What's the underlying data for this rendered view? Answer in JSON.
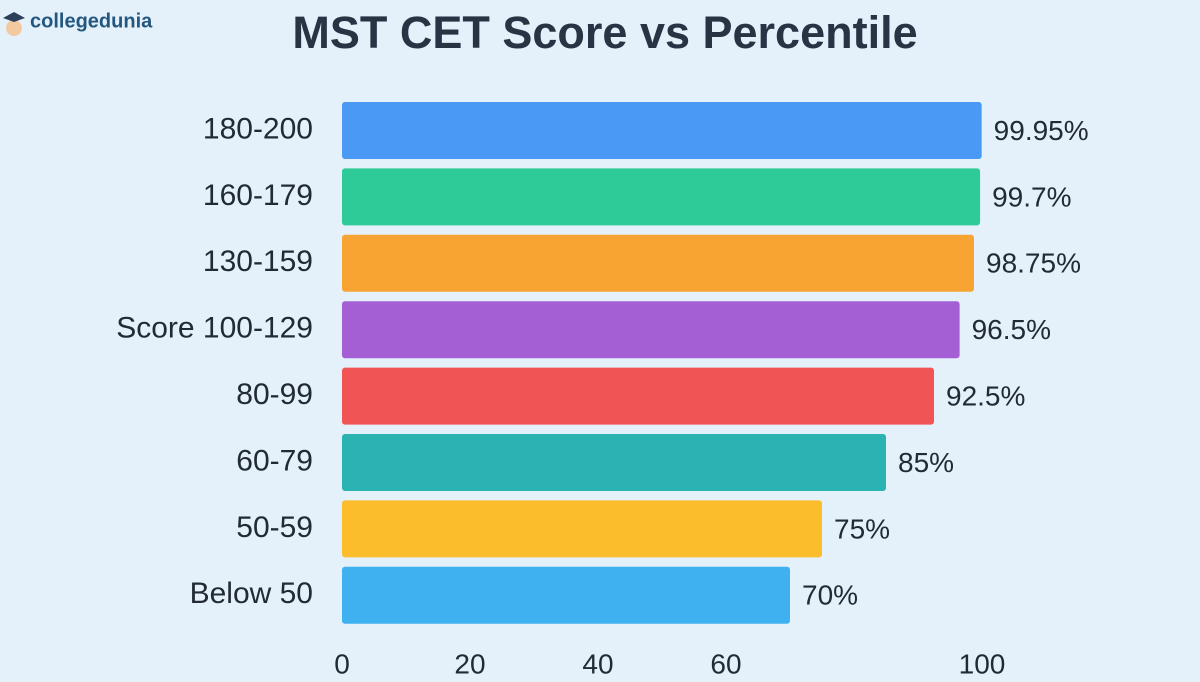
{
  "brand": "collegedunia",
  "chart_data": {
    "type": "bar",
    "orientation": "horizontal",
    "title": "MST CET Score vs Percentile",
    "categories": [
      "180-200",
      "160-179",
      "130-159",
      "Score 100-129",
      "80-99",
      "60-79",
      "50-59",
      "Below 50"
    ],
    "values": [
      99.95,
      99.7,
      98.75,
      96.5,
      92.5,
      85,
      75,
      70
    ],
    "value_labels": [
      "99.95%",
      "99.7%",
      "98.75%",
      "96.5%",
      "92.5%",
      "85%",
      "75%",
      "70%"
    ],
    "colors": [
      "#4a9af5",
      "#2ecb98",
      "#f7a433",
      "#a35fd3",
      "#f05454",
      "#2bb3b1",
      "#fbbd2c",
      "#3fb1f0"
    ],
    "xlim": [
      0,
      100
    ],
    "xticks": [
      0,
      20,
      40,
      60,
      100
    ],
    "grid": false
  }
}
